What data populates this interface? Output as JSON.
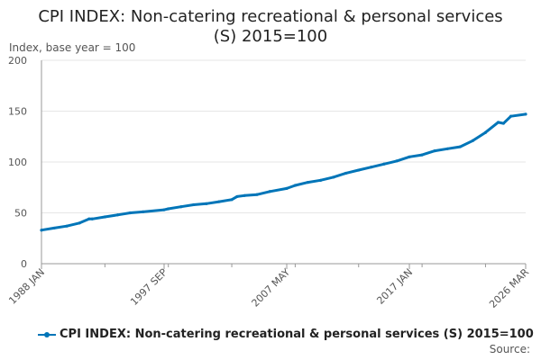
{
  "chart_data": {
    "type": "line",
    "title_line1": "CPI INDEX: Non-catering recreational & personal services",
    "title_line2": "(S) 2015=100",
    "ylabel": "Index, base year = 100",
    "xlabel": "",
    "ylim": [
      0,
      200
    ],
    "yticks": [
      0,
      50,
      100,
      150,
      200
    ],
    "x_range": [
      "1988 JAN",
      "2026 MAR"
    ],
    "xticks": [
      "1988 JAN",
      "1997 SEP",
      "2007 MAY",
      "2017 JAN",
      "2026 MAR"
    ],
    "grid": true,
    "legend_position": "bottom",
    "series": [
      {
        "name": "CPI INDEX: Non-catering recreational & personal services (S) 2015=100",
        "color": "#0075b8",
        "points": [
          [
            "1988 JAN",
            33
          ],
          [
            "1989 JAN",
            35
          ],
          [
            "1990 JAN",
            37
          ],
          [
            "1991 JAN",
            40
          ],
          [
            "1991 OCT",
            44
          ],
          [
            "1992 JAN",
            44
          ],
          [
            "1993 JAN",
            46
          ],
          [
            "1994 JAN",
            48
          ],
          [
            "1995 JAN",
            50
          ],
          [
            "1996 JAN",
            51
          ],
          [
            "1997 SEP",
            53
          ],
          [
            "1998 JAN",
            54
          ],
          [
            "1999 JAN",
            56
          ],
          [
            "2000 JAN",
            58
          ],
          [
            "2001 JAN",
            59
          ],
          [
            "2002 JAN",
            61
          ],
          [
            "2003 JAN",
            63
          ],
          [
            "2003 JUN",
            66
          ],
          [
            "2004 JAN",
            67
          ],
          [
            "2005 JAN",
            68
          ],
          [
            "2006 JAN",
            71
          ],
          [
            "2007 MAY",
            74
          ],
          [
            "2008 JAN",
            77
          ],
          [
            "2009 JAN",
            80
          ],
          [
            "2010 JAN",
            82
          ],
          [
            "2011 JAN",
            85
          ],
          [
            "2012 JAN",
            89
          ],
          [
            "2013 JAN",
            92
          ],
          [
            "2014 JAN",
            95
          ],
          [
            "2015 JAN",
            98
          ],
          [
            "2016 JAN",
            101
          ],
          [
            "2017 JAN",
            105
          ],
          [
            "2018 JAN",
            107
          ],
          [
            "2019 JAN",
            111
          ],
          [
            "2020 JAN",
            113
          ],
          [
            "2021 JAN",
            115
          ],
          [
            "2022 JAN",
            121
          ],
          [
            "2023 JAN",
            129
          ],
          [
            "2024 JAN",
            139
          ],
          [
            "2024 JUN",
            138
          ],
          [
            "2025 JAN",
            145
          ],
          [
            "2026 MAR",
            147
          ]
        ]
      }
    ]
  },
  "footer": {
    "source_label": "Source:"
  }
}
